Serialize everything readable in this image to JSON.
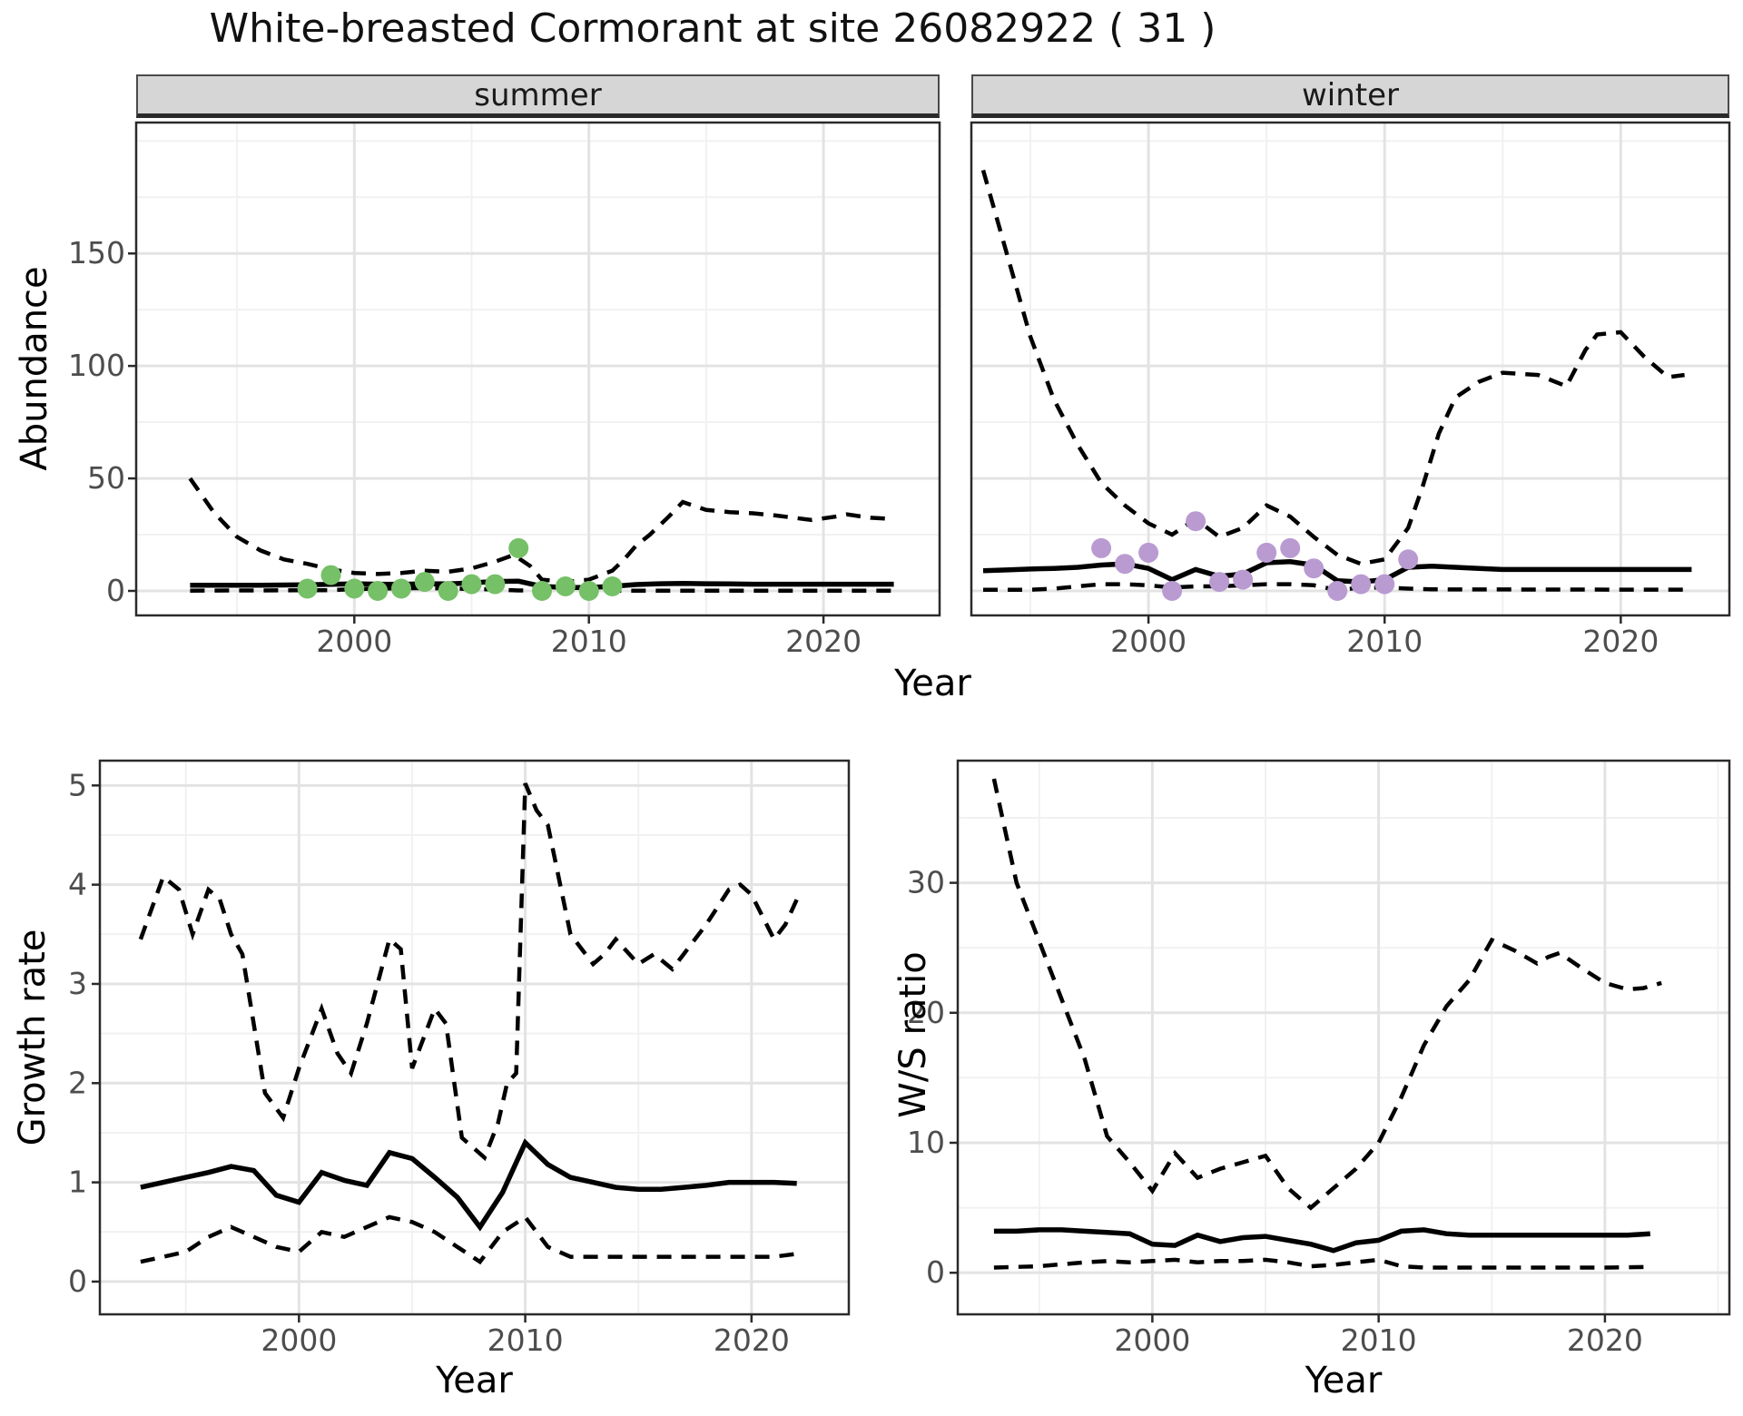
{
  "title": "White-breasted Cormorant at site 26082922 ( 31 )",
  "labels": {
    "y_top": "Abundance",
    "x_top": "Year",
    "y_growth": "Growth rate",
    "x_growth": "Year",
    "y_ws": "W/S ratio",
    "x_ws": "Year"
  },
  "colors": {
    "summer_point": "#76C068",
    "winter_point": "#B99BD1",
    "line": "#000000",
    "grid_major": "#e3e3e3",
    "grid_minor": "#f1f1f1",
    "panel_border": "#2a2a2a",
    "strip_bg": "#d6d6d6",
    "tick_mark": "#2a2a2a",
    "tick_label": "#4d4d4d"
  },
  "chart_data": [
    {
      "panel_id": "summer",
      "type": "line",
      "facet": "summer",
      "title": "",
      "xlabel": "Year",
      "ylabel": "Abundance",
      "xlim": [
        1990.7,
        2024.95
      ],
      "ylim": [
        -10.9,
        208.2
      ],
      "xticks": [
        2000,
        2010,
        2020
      ],
      "yticks": [
        0,
        50,
        100,
        150
      ],
      "xminor": [
        1995,
        2005,
        2015,
        2025
      ],
      "yminor": [
        25,
        75,
        125,
        175,
        200
      ],
      "grid": true,
      "legend": "none",
      "series": [
        {
          "name": "upper_ci",
          "style": "dashed",
          "x": [
            1993,
            1994,
            1995,
            1996,
            1997,
            1998,
            1999,
            2000,
            2001,
            2002,
            2003,
            2004,
            2005,
            2006,
            2006.8,
            2007.5,
            2008,
            2009,
            2010,
            2011,
            2011.5,
            2012,
            2012.6,
            2013.4,
            2014,
            2015,
            2016,
            2017,
            2018,
            2019.5,
            2020.5,
            2021,
            2022,
            2023
          ],
          "y": [
            50,
            35,
            24,
            18,
            14,
            12,
            9.5,
            8,
            7.5,
            8,
            9,
            8.5,
            10,
            13,
            16,
            11,
            5,
            4,
            5,
            9,
            14,
            20,
            25,
            33,
            39.5,
            36,
            35,
            34.5,
            33.5,
            31.5,
            33,
            34,
            32.5,
            32
          ]
        },
        {
          "name": "median",
          "style": "solid",
          "x": [
            1993,
            1994,
            1995,
            1996,
            1997,
            1998,
            1999,
            2000,
            2001,
            2002,
            2003,
            2004,
            2005,
            2006,
            2007,
            2008,
            2009,
            2010,
            2011,
            2012,
            2013,
            2014,
            2015,
            2016,
            2017,
            2018,
            2019,
            2020,
            2021,
            2022,
            2023
          ],
          "y": [
            2.5,
            2.5,
            2.5,
            2.5,
            2.6,
            2.7,
            2.9,
            3.2,
            3.0,
            2.9,
            3.2,
            3.1,
            3.6,
            4.2,
            4.3,
            2.0,
            1.5,
            1.5,
            2.0,
            2.8,
            3.2,
            3.3,
            3.2,
            3.1,
            3.0,
            3.0,
            3.0,
            3.0,
            3.0,
            3.0,
            3.0
          ]
        },
        {
          "name": "lower_ci",
          "style": "dashed",
          "x": [
            1993,
            1999,
            2000,
            2001,
            2002,
            2003,
            2004,
            2005,
            2006,
            2007,
            2008,
            2023
          ],
          "y": [
            0.1,
            0.3,
            0.8,
            1.0,
            1.2,
            1.2,
            1.1,
            0.9,
            0.6,
            0.2,
            0.1,
            0.1
          ]
        },
        {
          "name": "observations",
          "style": "points",
          "color": "#76C068",
          "x": [
            1998,
            1999,
            2000,
            2001,
            2002,
            2003,
            2004,
            2005,
            2006,
            2007,
            2008,
            2009,
            2010,
            2011
          ],
          "y": [
            1,
            7,
            1,
            0,
            1,
            4,
            0,
            3,
            3,
            19,
            0,
            2,
            0,
            2
          ]
        }
      ]
    },
    {
      "panel_id": "winter",
      "type": "line",
      "facet": "winter",
      "title": "",
      "xlabel": "Year",
      "ylabel": "Abundance",
      "xlim": [
        1992.5,
        2024.6
      ],
      "ylim": [
        -10.9,
        208.2
      ],
      "xticks": [
        2000,
        2010,
        2020
      ],
      "yticks": [
        0,
        50,
        100,
        150
      ],
      "xminor": [
        1995,
        2005,
        2015,
        2025
      ],
      "yminor": [
        25,
        75,
        125,
        175,
        200
      ],
      "grid": true,
      "legend": "none",
      "series": [
        {
          "name": "upper_ci",
          "style": "dashed",
          "x": [
            1993,
            1994,
            1995,
            1996,
            1997,
            1998,
            1999,
            2000,
            2001,
            2002,
            2003,
            2004,
            2005,
            2006,
            2007,
            2008,
            2009,
            2010,
            2011,
            2011.6,
            2012.3,
            2013,
            2014,
            2015,
            2016.5,
            2017.7,
            2018.5,
            2019,
            2020,
            2021,
            2022,
            2022.7
          ],
          "y": [
            187,
            150,
            113,
            85,
            65,
            48,
            38,
            30,
            25,
            32,
            24,
            28,
            38,
            33,
            24,
            16,
            12,
            14,
            28,
            46,
            70,
            86,
            93,
            97,
            96,
            91,
            107,
            114,
            115,
            104,
            95,
            96
          ]
        },
        {
          "name": "median",
          "style": "solid",
          "x": [
            1993,
            1994,
            1995,
            1996,
            1997,
            1998,
            1999,
            2000,
            2001,
            2002,
            2003,
            2004,
            2005,
            2006,
            2007,
            2008,
            2009,
            2010,
            2011,
            2012,
            2013,
            2014,
            2015,
            2016,
            2017,
            2018,
            2019,
            2020,
            2021,
            2022,
            2023
          ],
          "y": [
            9,
            9.3,
            9.7,
            10,
            10.5,
            11.5,
            12,
            10,
            5,
            9.5,
            6.5,
            7.5,
            12.5,
            13,
            11.5,
            4.5,
            4,
            5,
            10.5,
            11,
            10.5,
            10,
            9.5,
            9.5,
            9.5,
            9.5,
            9.5,
            9.5,
            9.5,
            9.5,
            9.5
          ]
        },
        {
          "name": "lower_ci",
          "style": "dashed",
          "x": [
            1993,
            1995,
            1996,
            1997,
            1998,
            1999,
            2000,
            2001,
            2002,
            2003,
            2004,
            2005,
            2006,
            2007,
            2008,
            2009,
            2010,
            2011,
            2012,
            2023
          ],
          "y": [
            0.5,
            0.5,
            1,
            2,
            3,
            3,
            2.5,
            1.5,
            2,
            2,
            2.5,
            3,
            3,
            2.5,
            0.3,
            1.5,
            1.5,
            1,
            0.7,
            0.5
          ]
        },
        {
          "name": "observations",
          "style": "points",
          "color": "#B99BD1",
          "x": [
            1998,
            1999,
            2000,
            2001,
            2002,
            2003,
            2004,
            2005,
            2006,
            2007,
            2008,
            2009,
            2010,
            2011
          ],
          "y": [
            19,
            12,
            17,
            0,
            31,
            4,
            5,
            17,
            19,
            10,
            0,
            3,
            3,
            14
          ]
        }
      ]
    },
    {
      "panel_id": "growth",
      "type": "line",
      "facet": "",
      "title": "",
      "xlabel": "Year",
      "ylabel": "Growth rate",
      "xlim": [
        1991.2,
        2024.3
      ],
      "ylim": [
        -0.33,
        5.25
      ],
      "xticks": [
        2000,
        2010,
        2020
      ],
      "yticks": [
        0,
        1,
        2,
        3,
        4,
        5
      ],
      "xminor": [
        1995,
        2005,
        2015,
        2025
      ],
      "yminor": [
        0.5,
        1.5,
        2.5,
        3.5,
        4.5
      ],
      "grid": true,
      "legend": "none",
      "series": [
        {
          "name": "upper_ci",
          "style": "dashed",
          "x": [
            1993,
            1994,
            1994.7,
            1995.3,
            1996,
            1996.5,
            1997,
            1997.5,
            1998.5,
            1999.3,
            2000,
            2001,
            2001.7,
            2002.3,
            2003,
            2004,
            2004.5,
            2005,
            2006,
            2006.5,
            2007.2,
            2008.2,
            2008.8,
            2009.2,
            2009.6,
            2010,
            2010.5,
            2011,
            2012,
            2012.5,
            2013,
            2013.5,
            2014,
            2015,
            2015.7,
            2016.5,
            2017,
            2018,
            2019,
            2019.5,
            2020,
            2021,
            2021.5,
            2022
          ],
          "y": [
            3.45,
            4.08,
            3.95,
            3.5,
            3.95,
            3.85,
            3.5,
            3.3,
            1.9,
            1.65,
            2.15,
            2.75,
            2.3,
            2.1,
            2.6,
            3.45,
            3.35,
            2.15,
            2.75,
            2.6,
            1.45,
            1.25,
            1.6,
            2.0,
            2.1,
            5.02,
            4.75,
            4.6,
            3.5,
            3.35,
            3.2,
            3.3,
            3.45,
            3.2,
            3.3,
            3.15,
            3.3,
            3.6,
            3.95,
            4.0,
            3.9,
            3.45,
            3.6,
            3.85
          ]
        },
        {
          "name": "median",
          "style": "solid",
          "x": [
            1993,
            1994,
            1995,
            1996,
            1997,
            1998,
            1999,
            2000,
            2001,
            2002,
            2003,
            2004,
            2005,
            2006,
            2007,
            2008,
            2009,
            2010,
            2011,
            2012,
            2013,
            2014,
            2015,
            2016,
            2017,
            2018,
            2019,
            2020,
            2021,
            2022
          ],
          "y": [
            0.95,
            1.0,
            1.05,
            1.1,
            1.16,
            1.12,
            0.87,
            0.8,
            1.1,
            1.02,
            0.97,
            1.3,
            1.24,
            1.05,
            0.85,
            0.55,
            0.9,
            1.4,
            1.18,
            1.05,
            1.0,
            0.95,
            0.93,
            0.93,
            0.95,
            0.97,
            1.0,
            1.0,
            1.0,
            0.99
          ]
        },
        {
          "name": "lower_ci",
          "style": "dashed",
          "x": [
            1993,
            1994,
            1995,
            1996,
            1997,
            1998,
            1999,
            2000,
            2001,
            2002,
            2003,
            2004,
            2005,
            2006,
            2007,
            2008,
            2009,
            2010,
            2011,
            2012,
            2014,
            2016,
            2018,
            2020,
            2021,
            2022
          ],
          "y": [
            0.2,
            0.25,
            0.3,
            0.45,
            0.55,
            0.45,
            0.35,
            0.3,
            0.5,
            0.45,
            0.55,
            0.65,
            0.6,
            0.5,
            0.35,
            0.2,
            0.5,
            0.65,
            0.35,
            0.25,
            0.25,
            0.25,
            0.25,
            0.25,
            0.25,
            0.28
          ]
        }
      ]
    },
    {
      "panel_id": "ws",
      "type": "line",
      "facet": "",
      "title": "",
      "xlabel": "Year",
      "ylabel": "W/S ratio",
      "xlim": [
        1991.4,
        2025.5
      ],
      "ylim": [
        -3.2,
        39.4
      ],
      "xticks": [
        2000,
        2010,
        2020
      ],
      "yticks": [
        0,
        10,
        20,
        30
      ],
      "xminor": [
        1995,
        2005,
        2015,
        2025
      ],
      "yminor": [
        5,
        15,
        25,
        35
      ],
      "grid": true,
      "legend": "none",
      "series": [
        {
          "name": "upper_ci",
          "style": "dashed",
          "x": [
            1993,
            1993.5,
            1994,
            1995,
            1996,
            1997,
            1998,
            1999,
            2000,
            2001,
            2002,
            2003,
            2004,
            2005,
            2006,
            2007,
            2008,
            2009,
            2010,
            2011,
            2012,
            2013,
            2014,
            2015,
            2015.5,
            2016,
            2017,
            2017.5,
            2018,
            2019,
            2020,
            2021,
            2021.7,
            2022.5
          ],
          "y": [
            38,
            34,
            30,
            25.5,
            21,
            16.5,
            10.5,
            8.5,
            6.3,
            9.2,
            7.3,
            8,
            8.5,
            9,
            6.5,
            5,
            6.5,
            8,
            10,
            13.5,
            17.5,
            20.5,
            22.5,
            25.6,
            25.2,
            24.8,
            23.8,
            24.3,
            24.6,
            23.4,
            22.3,
            21.8,
            21.9,
            22.3
          ]
        },
        {
          "name": "median",
          "style": "solid",
          "x": [
            1993,
            1994,
            1995,
            1996,
            1997,
            1998,
            1999,
            2000,
            2001,
            2002,
            2003,
            2004,
            2005,
            2006,
            2007,
            2008,
            2009,
            2010,
            2011,
            2012,
            2013,
            2014,
            2015,
            2016,
            2017,
            2018,
            2019,
            2020,
            2021,
            2022
          ],
          "y": [
            3.2,
            3.2,
            3.3,
            3.3,
            3.2,
            3.1,
            3.0,
            2.2,
            2.1,
            2.9,
            2.4,
            2.7,
            2.8,
            2.5,
            2.2,
            1.7,
            2.3,
            2.5,
            3.2,
            3.3,
            3.0,
            2.9,
            2.9,
            2.9,
            2.9,
            2.9,
            2.9,
            2.9,
            2.9,
            3.0
          ]
        },
        {
          "name": "lower_ci",
          "style": "dashed",
          "x": [
            1993,
            1995,
            1997,
            1998,
            1999,
            2000,
            2001,
            2002,
            2003,
            2004,
            2005,
            2006,
            2007,
            2008,
            2009,
            2010,
            2011,
            2012,
            2014,
            2016,
            2018,
            2020,
            2022
          ],
          "y": [
            0.4,
            0.5,
            0.8,
            0.9,
            0.8,
            0.9,
            1.0,
            0.8,
            0.9,
            0.9,
            1.0,
            0.8,
            0.5,
            0.6,
            0.8,
            1.0,
            0.5,
            0.4,
            0.4,
            0.4,
            0.4,
            0.4,
            0.45
          ]
        }
      ]
    }
  ]
}
